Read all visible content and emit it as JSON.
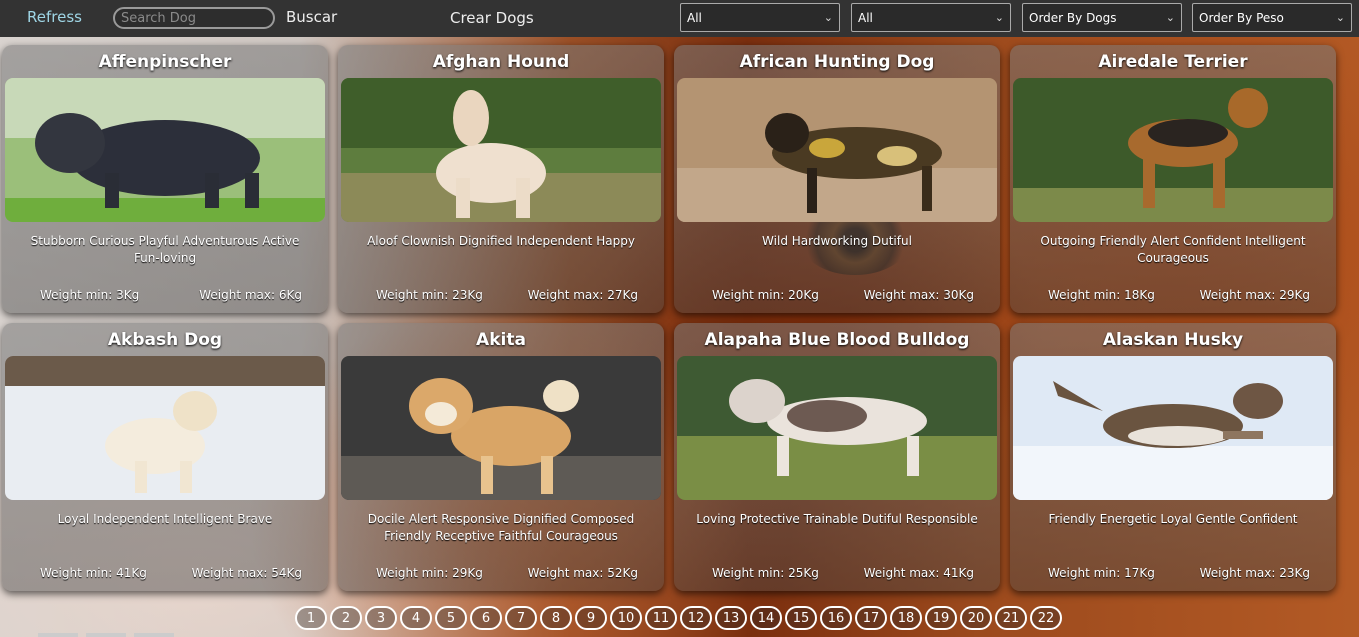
{
  "nav": {
    "refresh": "Refress",
    "search_placeholder": "Search Dog",
    "search_button": "Buscar",
    "create": "Crear Dogs"
  },
  "filters": [
    {
      "value": "All"
    },
    {
      "value": "All"
    },
    {
      "value": "Order By Dogs"
    },
    {
      "value": "Order By Peso"
    }
  ],
  "cards": [
    {
      "name": "Affenpinscher",
      "temperament": "Stubborn Curious Playful Adventurous Active Fun-loving",
      "wmin": "Weight min: 3Kg",
      "wmax": "Weight max: 6Kg"
    },
    {
      "name": "Afghan Hound",
      "temperament": "Aloof Clownish Dignified Independent Happy",
      "wmin": "Weight min: 23Kg",
      "wmax": "Weight max: 27Kg"
    },
    {
      "name": "African Hunting Dog",
      "temperament": "Wild Hardworking Dutiful",
      "wmin": "Weight min: 20Kg",
      "wmax": "Weight max: 30Kg"
    },
    {
      "name": "Airedale Terrier",
      "temperament": "Outgoing Friendly Alert Confident Intelligent Courageous",
      "wmin": "Weight min: 18Kg",
      "wmax": "Weight max: 29Kg"
    },
    {
      "name": "Akbash Dog",
      "temperament": "Loyal Independent Intelligent Brave",
      "wmin": "Weight min: 41Kg",
      "wmax": "Weight max: 54Kg"
    },
    {
      "name": "Akita",
      "temperament": "Docile Alert Responsive Dignified Composed Friendly Receptive Faithful Courageous",
      "wmin": "Weight min: 29Kg",
      "wmax": "Weight max: 52Kg"
    },
    {
      "name": "Alapaha Blue Blood Bulldog",
      "temperament": "Loving Protective Trainable Dutiful Responsible",
      "wmin": "Weight min: 25Kg",
      "wmax": "Weight max: 41Kg"
    },
    {
      "name": "Alaskan Husky",
      "temperament": "Friendly Energetic Loyal Gentle Confident",
      "wmin": "Weight min: 17Kg",
      "wmax": "Weight max: 23Kg"
    }
  ],
  "pages": [
    "1",
    "2",
    "3",
    "4",
    "5",
    "6",
    "7",
    "8",
    "9",
    "10",
    "11",
    "12",
    "13",
    "14",
    "15",
    "16",
    "17",
    "18",
    "19",
    "20",
    "21",
    "22"
  ]
}
